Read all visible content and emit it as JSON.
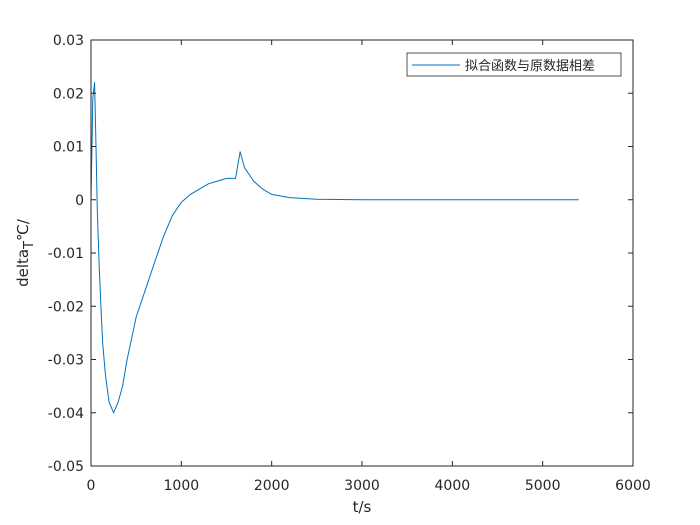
{
  "chart_data": {
    "type": "line",
    "title": "",
    "xlabel": "t/s",
    "ylabel_main": "delta",
    "ylabel_sub": "T",
    "ylabel_tail": "℃/",
    "xlim": [
      0,
      6000
    ],
    "ylim": [
      -0.05,
      0.03
    ],
    "xticks": [
      0,
      1000,
      2000,
      3000,
      4000,
      5000,
      6000
    ],
    "xtick_labels": [
      "0",
      "1000",
      "2000",
      "3000",
      "4000",
      "5000",
      "6000"
    ],
    "yticks": [
      -0.05,
      -0.04,
      -0.03,
      -0.02,
      -0.01,
      0,
      0.01,
      0.02,
      0.03
    ],
    "ytick_labels": [
      "-0.05",
      "-0.04",
      "-0.03",
      "-0.02",
      "-0.01",
      "0",
      "0.01",
      "0.02",
      "0.03"
    ],
    "grid": false,
    "legend_position": "top-right",
    "series_color": "#0072BD",
    "series": [
      {
        "name": "拟合函数与原数据相差",
        "x": [
          0,
          20,
          40,
          55,
          70,
          90,
          110,
          130,
          160,
          200,
          250,
          300,
          350,
          400,
          450,
          500,
          600,
          700,
          800,
          900,
          1000,
          1100,
          1200,
          1300,
          1400,
          1500,
          1600,
          1650,
          1700,
          1800,
          1900,
          2000,
          2200,
          2500,
          3000,
          4000,
          5000,
          5400
        ],
        "y": [
          0.0,
          0.019,
          0.022,
          0.01,
          -0.002,
          -0.012,
          -0.02,
          -0.027,
          -0.033,
          -0.038,
          -0.04,
          -0.038,
          -0.035,
          -0.03,
          -0.026,
          -0.022,
          -0.017,
          -0.012,
          -0.007,
          -0.003,
          -0.0005,
          0.001,
          0.002,
          0.003,
          0.0035,
          0.004,
          0.004,
          0.009,
          0.006,
          0.0035,
          0.002,
          0.001,
          0.0004,
          0.0001,
          0.0,
          0.0,
          0.0,
          0.0
        ]
      }
    ]
  }
}
